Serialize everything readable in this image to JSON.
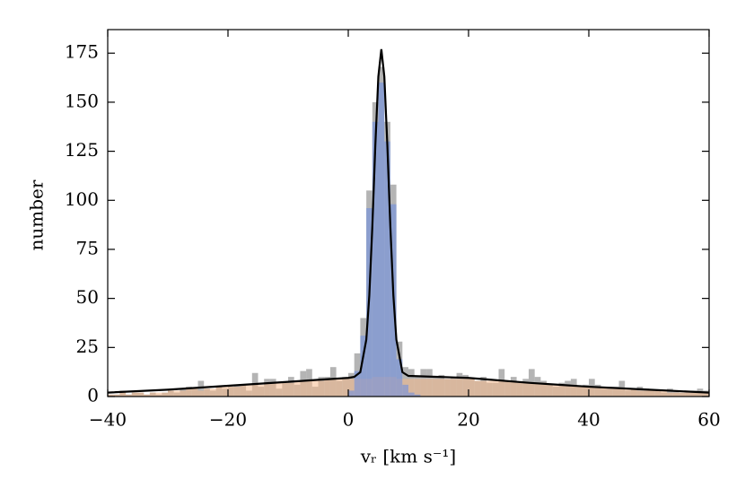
{
  "chart_data": {
    "type": "histogram",
    "xlabel": "vᵣ [km s⁻¹]",
    "ylabel": "number",
    "xlim": [
      -40,
      60
    ],
    "ylim": [
      0,
      187
    ],
    "xticks": [
      {
        "value": -40,
        "label": "−40"
      },
      {
        "value": -20,
        "label": "−20"
      },
      0,
      20,
      40,
      60
    ],
    "yticks": [
      0,
      25,
      50,
      75,
      100,
      125,
      150,
      175
    ],
    "series": [
      {
        "color": "#8c8c8c",
        "opacity": 0.65,
        "bins": [
          -40,
          -39,
          -38,
          -37,
          -36,
          -35,
          -34,
          -33,
          -32,
          -31,
          -30,
          -29,
          -28,
          -27,
          -26,
          -25,
          -24,
          -23,
          -22,
          -21,
          -20,
          -19,
          -18,
          -17,
          -16,
          -15,
          -14,
          -13,
          -12,
          -11,
          -10,
          -9,
          -8,
          -7,
          -6,
          -5,
          -4,
          -3,
          -2,
          -1,
          0,
          1,
          2,
          3,
          4,
          5,
          6,
          7,
          8,
          9,
          10,
          11,
          12,
          13,
          14,
          15,
          16,
          17,
          18,
          19,
          20,
          21,
          22,
          23,
          24,
          25,
          26,
          27,
          28,
          29,
          30,
          31,
          32,
          33,
          34,
          35,
          36,
          37,
          38,
          39,
          40,
          41,
          42,
          43,
          44,
          45,
          46,
          47,
          48,
          49,
          50,
          51,
          52,
          53,
          54,
          55,
          56,
          57,
          58,
          59,
          60
        ],
        "values": [
          1,
          1,
          3,
          1,
          2,
          2,
          1,
          2,
          1,
          2,
          3,
          2,
          4,
          5,
          4,
          8,
          4,
          3,
          5,
          4,
          5,
          6,
          6,
          3,
          12,
          5,
          9,
          9,
          4,
          7,
          10,
          6,
          13,
          14,
          5,
          10,
          10,
          15,
          8,
          10,
          12,
          22,
          40,
          105,
          150,
          168,
          140,
          108,
          28,
          15,
          14,
          10,
          14,
          14,
          10,
          11,
          9,
          10,
          12,
          11,
          9,
          8,
          10,
          7,
          7,
          14,
          8,
          10,
          7,
          9,
          14,
          10,
          8,
          6,
          5,
          7,
          8,
          9,
          5,
          6,
          9,
          6,
          4,
          5,
          5,
          8,
          3,
          4,
          5,
          4,
          3,
          3,
          2,
          4,
          3,
          2,
          2,
          3,
          4,
          3
        ]
      },
      {
        "color": "#f5b98c",
        "opacity": 0.55,
        "bins": [
          -40,
          -39,
          -38,
          -37,
          -36,
          -35,
          -34,
          -33,
          -32,
          -31,
          -30,
          -29,
          -28,
          -27,
          -26,
          -25,
          -24,
          -23,
          -22,
          -21,
          -20,
          -19,
          -18,
          -17,
          -16,
          -15,
          -14,
          -13,
          -12,
          -11,
          -10,
          -9,
          -8,
          -7,
          -6,
          -5,
          -4,
          -3,
          -2,
          -1,
          0,
          1,
          2,
          3,
          4,
          5,
          6,
          7,
          8,
          9,
          10,
          11,
          12,
          13,
          14,
          15,
          16,
          17,
          18,
          19,
          20,
          21,
          22,
          23,
          24,
          25,
          26,
          27,
          28,
          29,
          30,
          31,
          32,
          33,
          34,
          35,
          36,
          37,
          38,
          39,
          40,
          41,
          42,
          43,
          44,
          45,
          46,
          47,
          48,
          49,
          50,
          51,
          52,
          53,
          54,
          55,
          56,
          57,
          58,
          59,
          60
        ],
        "values": [
          1,
          1,
          2,
          1,
          2,
          2,
          1,
          2,
          2,
          2,
          3,
          3,
          3,
          4,
          4,
          3,
          4,
          4,
          5,
          5,
          5,
          5,
          6,
          6,
          6,
          6,
          7,
          7,
          7,
          7,
          7,
          8,
          8,
          8,
          8,
          8,
          9,
          9,
          9,
          9,
          9,
          9,
          9,
          9,
          10,
          10,
          10,
          10,
          9,
          9,
          9,
          9,
          9,
          9,
          9,
          9,
          9,
          9,
          9,
          9,
          9,
          8,
          8,
          8,
          8,
          8,
          8,
          8,
          7,
          7,
          7,
          7,
          7,
          6,
          6,
          6,
          6,
          6,
          5,
          5,
          5,
          5,
          5,
          4,
          4,
          4,
          4,
          4,
          3,
          3,
          3,
          3,
          3,
          2,
          2,
          2,
          2,
          2,
          2,
          2
        ]
      },
      {
        "color": "#6f8fe0",
        "opacity": 0.6,
        "bins": [
          0,
          1,
          2,
          3,
          4,
          5,
          6,
          7,
          8,
          9,
          10,
          11,
          12
        ],
        "values": [
          3,
          13,
          31,
          96,
          140,
          160,
          130,
          98,
          19,
          6,
          2,
          1
        ]
      }
    ],
    "curve": {
      "color": "#000000",
      "x": [
        -40,
        -30,
        -20,
        -10,
        -5,
        0,
        1,
        2,
        3,
        3.5,
        4,
        4.5,
        5,
        5.5,
        6,
        6.5,
        7,
        7.5,
        8,
        9,
        10,
        15,
        20,
        30,
        40,
        50,
        60
      ],
      "y": [
        2,
        3.5,
        5.5,
        7.5,
        8.5,
        9.5,
        10,
        12.4,
        29,
        51.6,
        86.5,
        128,
        163,
        177,
        163,
        128,
        86.5,
        51.6,
        29,
        12.4,
        10.5,
        10,
        9.5,
        7,
        5,
        3.5,
        2
      ]
    }
  }
}
